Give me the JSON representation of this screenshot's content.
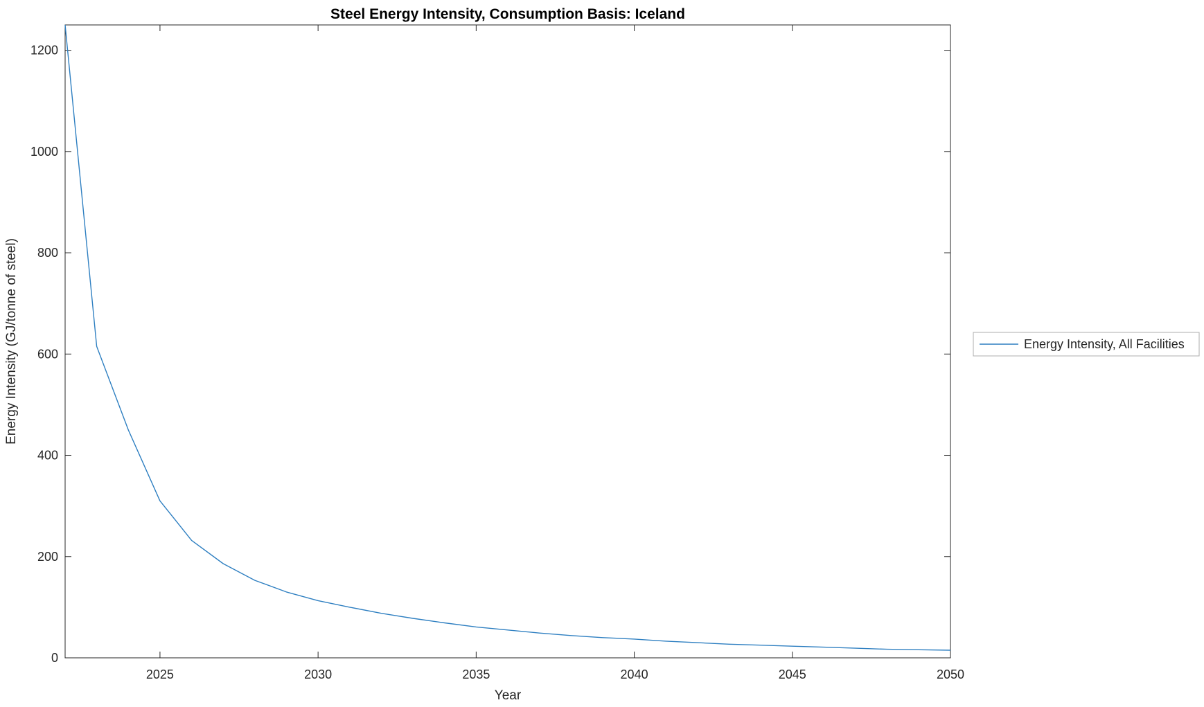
{
  "chart_data": {
    "type": "line",
    "title": "Steel Energy Intensity, Consumption Basis: Iceland",
    "xlabel": "Year",
    "ylabel": "Energy Intensity (GJ/tonne of steel)",
    "xlim": [
      2022,
      2050
    ],
    "ylim": [
      0,
      1250
    ],
    "xticks": [
      2025,
      2030,
      2035,
      2040,
      2045,
      2050
    ],
    "yticks": [
      0,
      200,
      400,
      600,
      800,
      1000,
      1200
    ],
    "grid": false,
    "legend_position": "right-outside",
    "axis_color": "#262626",
    "series": [
      {
        "name": "Energy Intensity, All Facilities",
        "color": "#2E7FC1",
        "x": [
          2022,
          2023,
          2024,
          2025,
          2026,
          2027,
          2028,
          2029,
          2030,
          2031,
          2032,
          2033,
          2034,
          2035,
          2036,
          2037,
          2038,
          2039,
          2040,
          2041,
          2042,
          2043,
          2044,
          2045,
          2046,
          2047,
          2048,
          2049,
          2050
        ],
        "values": [
          1250,
          615,
          450,
          310,
          232,
          186,
          153,
          130,
          113,
          100,
          88,
          78,
          69,
          61,
          55,
          49,
          44,
          40,
          37,
          33,
          30,
          27,
          25,
          23,
          21,
          19,
          17,
          16,
          15
        ]
      }
    ]
  },
  "legend": {
    "items": [
      {
        "label": "Energy Intensity, All Facilities"
      }
    ]
  }
}
